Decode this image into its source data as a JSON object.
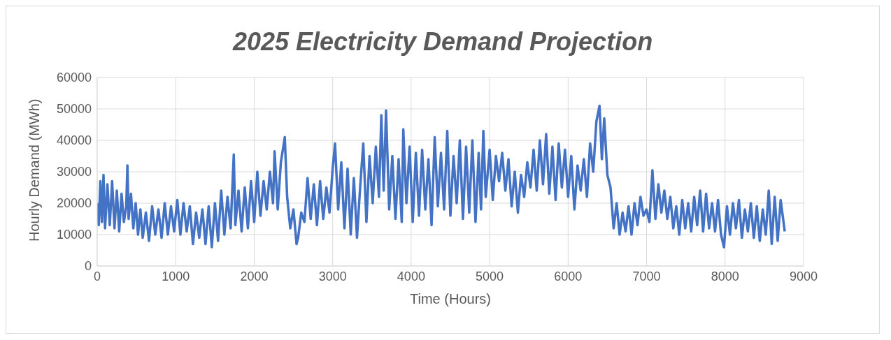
{
  "chart_data": {
    "type": "line",
    "title": "2025 Electricity Demand Projection",
    "xlabel": "Time (Hours)",
    "ylabel": "Hourly Demand (MWh)",
    "xlim": [
      0,
      9000
    ],
    "xticks": [
      0,
      1000,
      2000,
      3000,
      4000,
      5000,
      6000,
      7000,
      8000,
      9000
    ],
    "ylim": [
      0,
      60000
    ],
    "yticks": [
      0,
      10000,
      20000,
      30000,
      40000,
      50000,
      60000
    ],
    "grid": true,
    "legend": false,
    "marker": "none",
    "line_style": "solid",
    "series": [
      {
        "color": "#4472c4",
        "x": [
          0,
          20,
          40,
          60,
          80,
          100,
          130,
          160,
          190,
          220,
          250,
          280,
          310,
          340,
          370,
          385,
          400,
          430,
          460,
          490,
          520,
          550,
          580,
          620,
          660,
          700,
          740,
          780,
          820,
          860,
          900,
          940,
          980,
          1020,
          1060,
          1100,
          1140,
          1180,
          1220,
          1260,
          1300,
          1340,
          1380,
          1420,
          1460,
          1500,
          1540,
          1580,
          1620,
          1660,
          1700,
          1740,
          1760,
          1800,
          1840,
          1880,
          1920,
          1960,
          2000,
          2040,
          2080,
          2120,
          2160,
          2200,
          2240,
          2260,
          2300,
          2340,
          2390,
          2420,
          2460,
          2500,
          2540,
          2560,
          2600,
          2640,
          2680,
          2720,
          2760,
          2800,
          2840,
          2880,
          2920,
          2960,
          3000,
          3030,
          3070,
          3110,
          3150,
          3190,
          3230,
          3270,
          3310,
          3350,
          3390,
          3430,
          3470,
          3510,
          3550,
          3590,
          3620,
          3650,
          3680,
          3720,
          3760,
          3800,
          3840,
          3880,
          3900,
          3940,
          3980,
          4020,
          4060,
          4100,
          4140,
          4180,
          4220,
          4260,
          4300,
          4340,
          4380,
          4420,
          4460,
          4500,
          4540,
          4580,
          4620,
          4660,
          4700,
          4740,
          4780,
          4820,
          4860,
          4890,
          4920,
          4950,
          5000,
          5040,
          5080,
          5120,
          5160,
          5200,
          5240,
          5280,
          5320,
          5360,
          5400,
          5440,
          5480,
          5520,
          5560,
          5600,
          5640,
          5680,
          5720,
          5760,
          5800,
          5840,
          5880,
          5920,
          5960,
          6000,
          6040,
          6080,
          6120,
          6160,
          6200,
          6240,
          6280,
          6320,
          6360,
          6400,
          6430,
          6460,
          6500,
          6540,
          6580,
          6618,
          6656,
          6694,
          6732,
          6770,
          6808,
          6846,
          6884,
          6922,
          6960,
          6998,
          7036,
          7074,
          7112,
          7150,
          7188,
          7226,
          7264,
          7302,
          7340,
          7378,
          7416,
          7454,
          7492,
          7530,
          7568,
          7606,
          7644,
          7682,
          7720,
          7758,
          7796,
          7834,
          7872,
          7910,
          7948,
          7986,
          8024,
          8062,
          8100,
          8138,
          8176,
          8214,
          8252,
          8290,
          8328,
          8366,
          8404,
          8442,
          8480,
          8518,
          8556,
          8594,
          8632,
          8670,
          8708,
          8760
        ],
        "values": [
          20000,
          13000,
          27000,
          14000,
          29000,
          12000,
          26000,
          13000,
          27000,
          12000,
          24000,
          11000,
          23000,
          14000,
          19000,
          32000,
          15000,
          23000,
          12000,
          20000,
          10000,
          18000,
          9000,
          17000,
          8000,
          19000,
          10000,
          18000,
          9000,
          20000,
          10000,
          19000,
          11000,
          21000,
          10000,
          20000,
          11000,
          19000,
          7000,
          17000,
          9000,
          18000,
          7000,
          19000,
          6000,
          20000,
          8000,
          24000,
          10000,
          22000,
          12000,
          35500,
          13000,
          24000,
          11000,
          25000,
          12000,
          27000,
          14000,
          30000,
          16000,
          27000,
          18000,
          30000,
          20000,
          36500,
          18000,
          33000,
          41000,
          22000,
          12000,
          18000,
          7000,
          9000,
          17000,
          14000,
          28000,
          15000,
          26000,
          13000,
          27000,
          15000,
          25000,
          17000,
          31000,
          39000,
          18000,
          33000,
          12000,
          31000,
          10000,
          28000,
          9000,
          25000,
          39000,
          14000,
          35000,
          20000,
          38000,
          22000,
          48000,
          24000,
          49500,
          18000,
          35000,
          15000,
          34000,
          14000,
          43500,
          20000,
          38000,
          14000,
          36000,
          16000,
          37000,
          18000,
          34000,
          13000,
          41000,
          19000,
          36000,
          18000,
          43000,
          16000,
          35000,
          20000,
          40000,
          15000,
          38000,
          17000,
          40000,
          14000,
          36000,
          18000,
          43000,
          22000,
          37000,
          21000,
          35000,
          27000,
          36000,
          24000,
          34000,
          19000,
          30000,
          17000,
          29000,
          22000,
          33000,
          25000,
          37000,
          24000,
          40000,
          26000,
          42000,
          23000,
          38000,
          21000,
          39000,
          25000,
          37000,
          22000,
          35000,
          18000,
          32000,
          24000,
          34000,
          22000,
          39000,
          30000,
          46000,
          51000,
          34000,
          47000,
          29000,
          25000,
          12000,
          20000,
          10000,
          17000,
          11000,
          19000,
          10000,
          20000,
          13000,
          22000,
          16000,
          18000,
          14000,
          30500,
          15000,
          26000,
          17000,
          24000,
          15000,
          22000,
          12000,
          19000,
          10000,
          21000,
          12000,
          20000,
          11000,
          22000,
          13000,
          24000,
          11000,
          23000,
          12000,
          20000,
          11000,
          21000,
          10000,
          6000,
          19000,
          10000,
          20000,
          12000,
          21000,
          9000,
          18000,
          11000,
          20000,
          9000,
          19000,
          8000,
          18000,
          10000,
          24000,
          7000,
          22000,
          8000,
          21000,
          11000
        ]
      }
    ]
  }
}
